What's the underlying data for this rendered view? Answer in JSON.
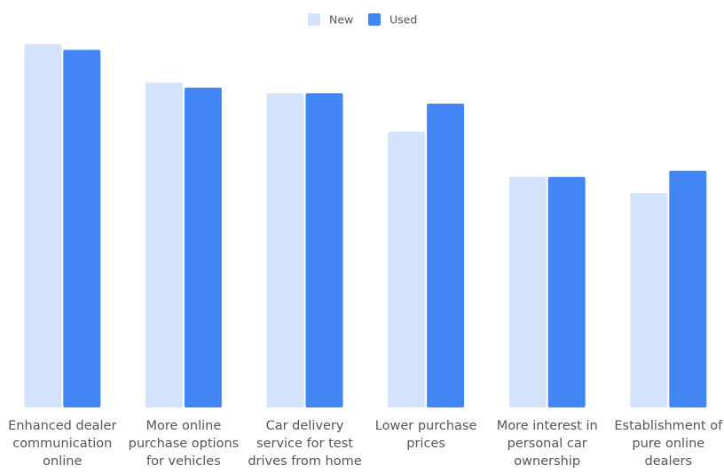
{
  "chart_data": {
    "type": "bar",
    "title": "",
    "xlabel": "",
    "ylabel": "",
    "ylim": [
      0,
      52
    ],
    "grid": false,
    "legend_position": "top-center",
    "categories": [
      [
        "Enhanced dealer",
        "communication",
        "online"
      ],
      [
        "More online",
        "purchase options",
        "for vehicles"
      ],
      [
        "Car delivery",
        "service for test",
        "drives from home"
      ],
      [
        "Lower purchase",
        "prices"
      ],
      [
        "More interest in",
        "personal car",
        "ownership"
      ],
      [
        "Establishment of",
        "pure online",
        "dealers"
      ]
    ],
    "series": [
      {
        "name": "New",
        "color": "#d3e3fb",
        "values": [
          52,
          46.5,
          45,
          39.5,
          33,
          30.7
        ]
      },
      {
        "name": "Used",
        "color": "#4285f4",
        "values": [
          51.2,
          45.8,
          45,
          43.5,
          33,
          33.9
        ]
      }
    ]
  }
}
